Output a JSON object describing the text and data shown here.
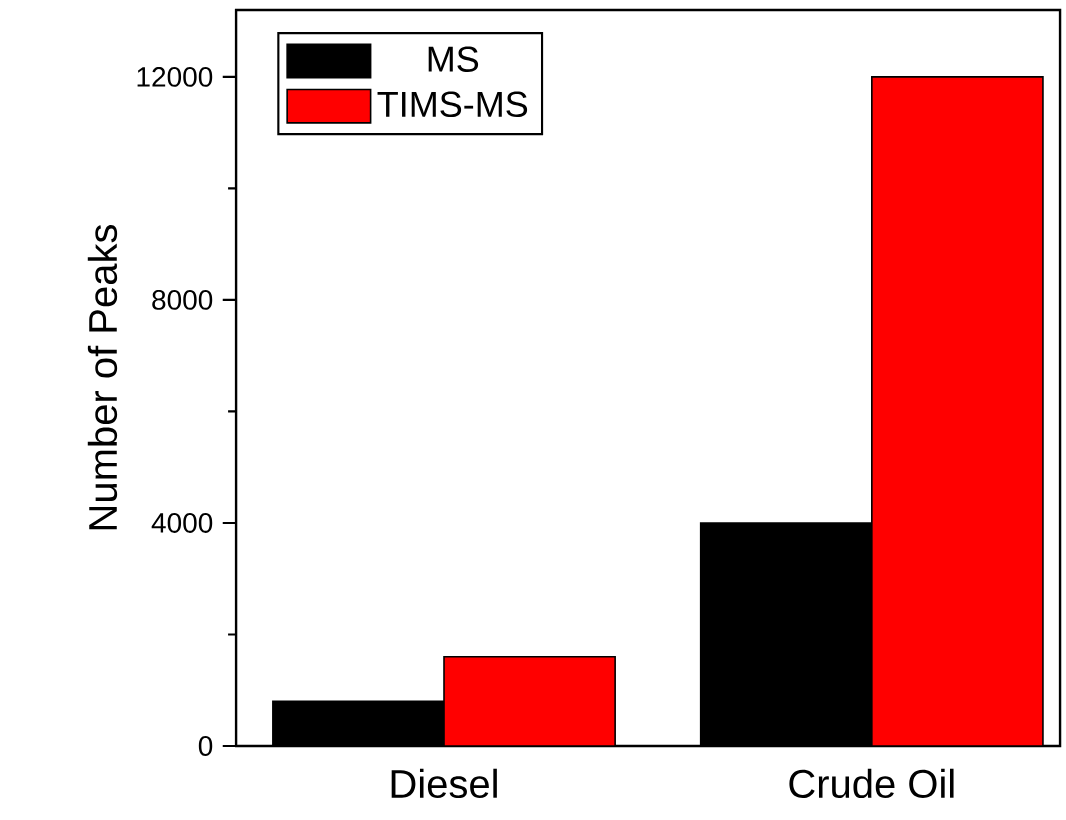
{
  "chart_data": {
    "type": "bar",
    "ylabel": "Number of Peaks",
    "categories": [
      "Diesel",
      "Crude Oil"
    ],
    "series": [
      {
        "name": "MS",
        "color": "#000000",
        "values": [
          800,
          4000
        ]
      },
      {
        "name": "TIMS-MS",
        "color": "#ff0000",
        "values": [
          1600,
          12000
        ]
      }
    ],
    "ylim": [
      0,
      13200
    ],
    "yticks": [
      0,
      4000,
      8000,
      12000
    ],
    "legend": "top left"
  }
}
